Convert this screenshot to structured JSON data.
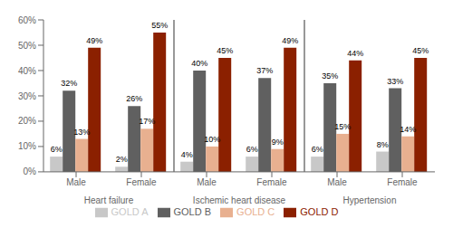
{
  "chart_data": {
    "type": "bar",
    "categories": [
      "Male",
      "Female",
      "Male",
      "Female",
      "Male",
      "Female"
    ],
    "annotations": [
      "Heart failure",
      "Ischemic heart disease",
      "Hypertension"
    ],
    "series": [
      {
        "name": "GOLD A",
        "color": "#c8c8c8",
        "values": [
          6,
          2,
          4,
          6,
          6,
          8
        ],
        "value_labels": [
          "6%",
          "2%",
          "4%",
          "6%",
          "6%",
          "8%"
        ]
      },
      {
        "name": "GOLD B",
        "color": "#606060",
        "values": [
          32,
          26,
          40,
          37,
          35,
          33
        ],
        "value_labels": [
          "32%",
          "26%",
          "40%",
          "37%",
          "35%",
          "33%"
        ]
      },
      {
        "name": "GOLD C",
        "color": "#e8b090",
        "values": [
          13,
          17,
          10,
          9,
          15,
          14
        ],
        "value_labels": [
          "13%",
          "17%",
          "10%",
          "9%",
          "15%",
          "14%"
        ]
      },
      {
        "name": "GOLD D",
        "color": "#8b2000",
        "values": [
          49,
          55,
          45,
          49,
          44,
          45
        ],
        "value_labels": [
          "49%",
          "55%",
          "45%",
          "49%",
          "44%",
          "45%"
        ]
      }
    ],
    "ylim": [
      0,
      60
    ],
    "yticks": [
      {
        "value": 0,
        "label": "0%"
      },
      {
        "value": 10,
        "label": "10%"
      },
      {
        "value": 20,
        "label": "20%"
      },
      {
        "value": 30,
        "label": "30%"
      },
      {
        "value": 40,
        "label": "40%"
      },
      {
        "value": 50,
        "label": "50%"
      },
      {
        "value": 60,
        "label": "60%"
      }
    ],
    "grid": false,
    "legend": "bottom",
    "data_labels": true
  }
}
